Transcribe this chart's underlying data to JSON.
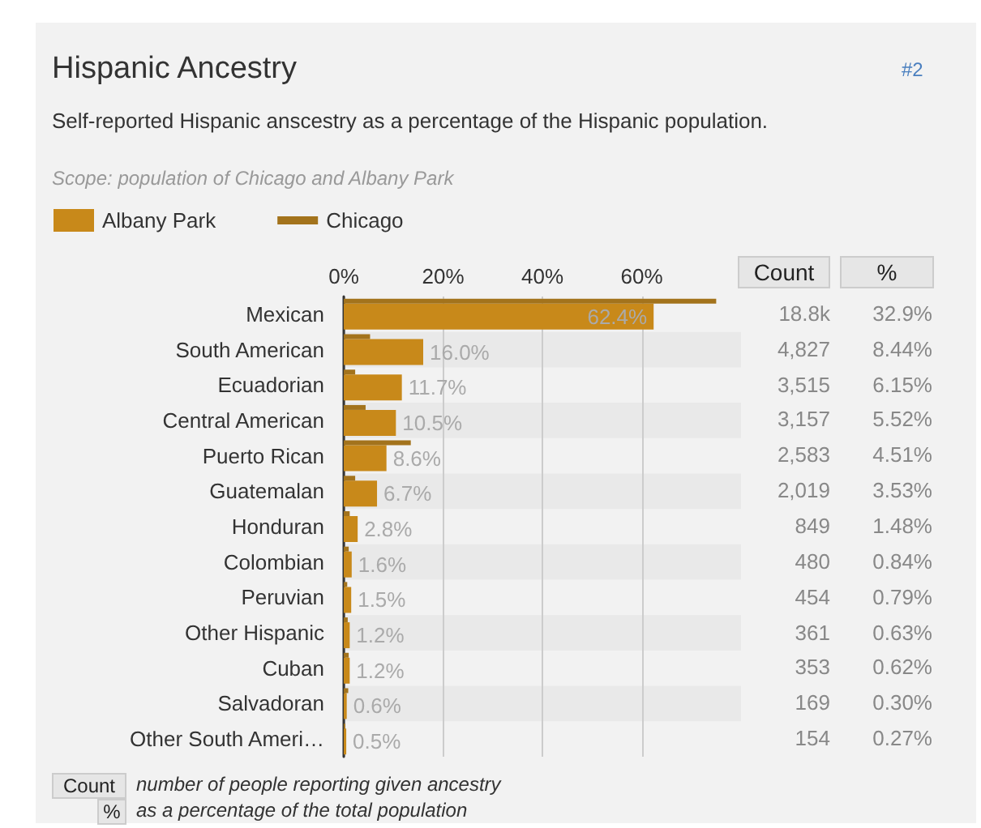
{
  "chart_data": {
    "type": "bar",
    "orientation": "horizontal",
    "title": "Hispanic Ancestry",
    "subtitle": "Self-reported Hispanic anscestry as a percentage of the Hispanic population.",
    "categories": [
      "Mexican",
      "South American",
      "Ecuadorian",
      "Central American",
      "Puerto Rican",
      "Guatemalan",
      "Honduran",
      "Colombian",
      "Peruvian",
      "Other Hispanic",
      "Cuban",
      "Salvadoran",
      "Other South Ameri…"
    ],
    "series": [
      {
        "name": "Albany Park",
        "color": "#c8891a",
        "values": [
          62.4,
          16.0,
          11.7,
          10.5,
          8.6,
          6.7,
          2.8,
          1.6,
          1.5,
          1.2,
          1.2,
          0.6,
          0.5
        ],
        "value_labels": [
          "62.4%",
          "16.0%",
          "11.7%",
          "10.5%",
          "8.6%",
          "6.7%",
          "2.8%",
          "1.6%",
          "1.5%",
          "1.2%",
          "1.2%",
          "0.6%",
          "0.5%"
        ]
      },
      {
        "name": "Chicago",
        "color": "#a3731c",
        "values": [
          75.0,
          5.3,
          2.3,
          4.4,
          13.5,
          2.3,
          1.2,
          1.0,
          0.7,
          0.8,
          1.0,
          0.9,
          0.3
        ]
      }
    ],
    "xlim": [
      0,
      80
    ],
    "xticks": [
      {
        "value": 0,
        "label": "0%"
      },
      {
        "value": 20,
        "label": "20%"
      },
      {
        "value": 40,
        "label": "40%"
      },
      {
        "value": 60,
        "label": "60%"
      }
    ],
    "grid": "x",
    "legend": "top left",
    "annotations": [
      "#2",
      "Scope: population of Chicago and Albany Park",
      "Count",
      "%",
      "18.8k",
      "32.9%",
      "4,827",
      "8.44%",
      "3,515",
      "6.15%",
      "3,157",
      "5.52%",
      "2,583",
      "4.51%",
      "2,019",
      "3.53%",
      "849",
      "1.48%",
      "480",
      "0.84%",
      "454",
      "0.79%",
      "361",
      "0.63%",
      "353",
      "0.62%",
      "169",
      "0.30%",
      "154",
      "0.27%",
      "Count",
      "number of people reporting given ancestry",
      "%",
      "as a percentage of the total population"
    ]
  }
}
